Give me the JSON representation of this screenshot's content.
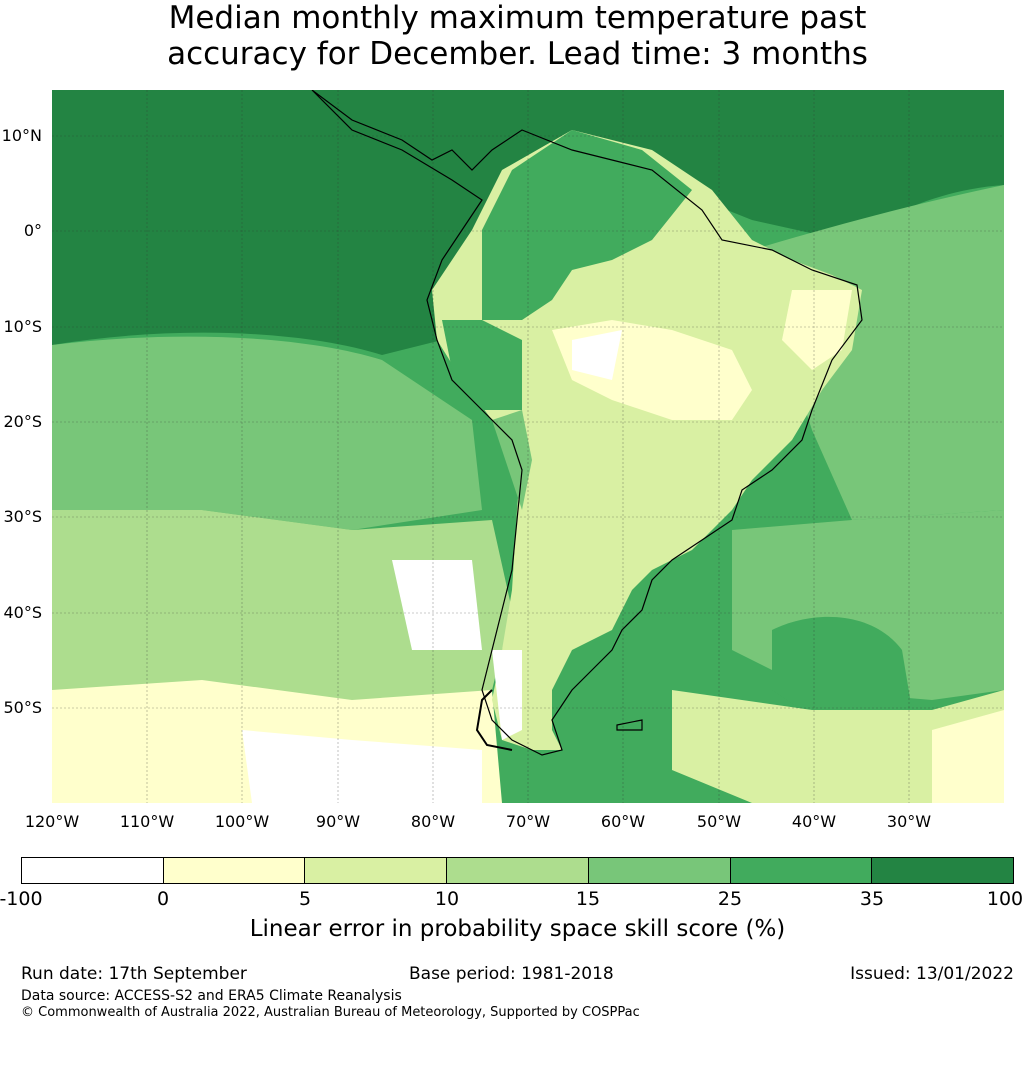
{
  "title": {
    "line1": "Median monthly maximum temperature past",
    "line2": "accuracy for December. Lead time: 3 months"
  },
  "map": {
    "lat_labels": [
      "10°N",
      "0°",
      "10°S",
      "20°S",
      "30°S",
      "40°S",
      "50°S"
    ],
    "lon_labels": [
      "120°W",
      "110°W",
      "100°W",
      "90°W",
      "80°W",
      "70°W",
      "60°W",
      "50°W",
      "40°W",
      "30°W"
    ],
    "colors": {
      "ocean_north": "#238443",
      "band_35": "#41ab5d",
      "band_25": "#78c679",
      "band_15": "#addd8e",
      "band_10": "#d9f0a3",
      "band_5": "#ffffcc",
      "band_neg": "#ffffff"
    }
  },
  "colorbar": {
    "colors": [
      "#ffffff",
      "#ffffcc",
      "#d9f0a3",
      "#addd8e",
      "#78c679",
      "#41ab5d",
      "#238443"
    ],
    "ticks": [
      "-100",
      "0",
      "5",
      "10",
      "15",
      "25",
      "35",
      "100"
    ],
    "label": "Linear error in probability space skill score (%)"
  },
  "footer": {
    "run_date": "Run date: 17th September",
    "base_period": "Base period: 1981-2018",
    "issued": "Issued: 13/01/2022",
    "data_source": "Data source: ACCESS-S2 and ERA5 Climate Reanalysis",
    "copyright": "© Commonwealth of Australia 2022, Australian Bureau of Meteorology, Supported by COSPPac"
  }
}
